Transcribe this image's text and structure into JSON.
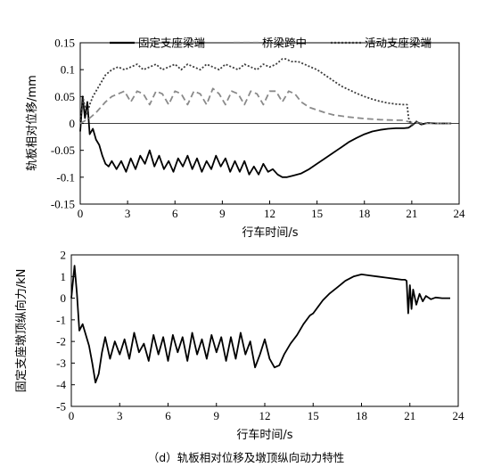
{
  "caption": "（d）轨板相对位移及墩顶纵向动力特性",
  "chart_data": [
    {
      "type": "line",
      "xlabel": "行车时间/s",
      "ylabel": "轨板相对位移/mm",
      "xlim": [
        0,
        24
      ],
      "ylim": [
        -0.15,
        0.15
      ],
      "xticks": [
        "0",
        "3",
        "6",
        "9",
        "12",
        "15",
        "18",
        "21",
        "24"
      ],
      "yticks": [
        "0.15",
        "0.1",
        "0.05",
        "0",
        "-0.05",
        "-0.1",
        "-0.15"
      ],
      "legend_position": "top",
      "series": [
        {
          "name": "固定支座梁端",
          "color": "#000000",
          "dash": "solid",
          "x": [
            0,
            0.15,
            0.3,
            0.45,
            0.6,
            0.8,
            1.0,
            1.2,
            1.4,
            1.6,
            1.8,
            2.0,
            2.3,
            2.6,
            2.9,
            3.2,
            3.5,
            3.8,
            4.1,
            4.4,
            4.7,
            5.0,
            5.3,
            5.6,
            5.9,
            6.2,
            6.5,
            6.8,
            7.1,
            7.4,
            7.7,
            8.0,
            8.3,
            8.6,
            8.9,
            9.2,
            9.5,
            9.8,
            10.1,
            10.4,
            10.7,
            11.0,
            11.3,
            11.6,
            11.9,
            12.2,
            12.5,
            12.8,
            13.1,
            13.5,
            14.0,
            14.5,
            15.0,
            15.5,
            16.0,
            16.5,
            17.0,
            17.5,
            18.0,
            18.5,
            19.0,
            19.5,
            20.0,
            20.5,
            20.8,
            21.0,
            21.3,
            21.6,
            22.0,
            22.5,
            23.0,
            23.5
          ],
          "y": [
            -0.015,
            0.05,
            0.01,
            0.04,
            -0.02,
            -0.01,
            -0.03,
            -0.04,
            -0.06,
            -0.075,
            -0.08,
            -0.07,
            -0.085,
            -0.07,
            -0.09,
            -0.065,
            -0.085,
            -0.06,
            -0.075,
            -0.05,
            -0.08,
            -0.06,
            -0.085,
            -0.07,
            -0.09,
            -0.065,
            -0.08,
            -0.06,
            -0.085,
            -0.065,
            -0.09,
            -0.07,
            -0.085,
            -0.06,
            -0.08,
            -0.065,
            -0.09,
            -0.07,
            -0.09,
            -0.07,
            -0.095,
            -0.08,
            -0.095,
            -0.075,
            -0.09,
            -0.085,
            -0.095,
            -0.1,
            -0.1,
            -0.097,
            -0.093,
            -0.085,
            -0.075,
            -0.065,
            -0.055,
            -0.045,
            -0.035,
            -0.027,
            -0.02,
            -0.015,
            -0.012,
            -0.01,
            -0.009,
            -0.009,
            -0.008,
            -0.004,
            0.003,
            -0.002,
            0.001,
            0,
            0,
            0
          ]
        },
        {
          "name": "桥梁跨中",
          "color": "#8a8a8a",
          "dash": "dashed",
          "x": [
            0,
            0.3,
            0.6,
            1.0,
            1.3,
            1.6,
            2.0,
            2.4,
            2.8,
            3.2,
            3.6,
            4.0,
            4.4,
            4.8,
            5.2,
            5.6,
            6.0,
            6.4,
            6.8,
            7.2,
            7.6,
            8.0,
            8.4,
            8.8,
            9.2,
            9.6,
            10.0,
            10.4,
            10.8,
            11.2,
            11.6,
            12.0,
            12.4,
            12.8,
            13.2,
            13.6,
            14.0,
            14.5,
            15.0,
            15.5,
            16.0,
            17.0,
            18.0,
            19.0,
            20.0,
            20.5,
            20.8,
            21.0,
            21.5,
            22.0,
            23.5
          ],
          "y": [
            0,
            0.005,
            0.01,
            0.02,
            0.03,
            0.04,
            0.05,
            0.055,
            0.06,
            0.04,
            0.06,
            0.055,
            0.035,
            0.06,
            0.055,
            0.035,
            0.06,
            0.055,
            0.035,
            0.06,
            0.055,
            0.035,
            0.065,
            0.055,
            0.035,
            0.06,
            0.055,
            0.035,
            0.06,
            0.055,
            0.035,
            0.06,
            0.06,
            0.04,
            0.06,
            0.055,
            0.04,
            0.03,
            0.025,
            0.02,
            0.016,
            0.012,
            0.009,
            0.007,
            0.006,
            0.006,
            0.003,
            0.002,
            0.001,
            0,
            0
          ]
        },
        {
          "name": "活动支座梁端",
          "color": "#3c3c3c",
          "dash": "dotted",
          "x": [
            0,
            0.2,
            0.4,
            0.6,
            0.8,
            1.0,
            1.3,
            1.6,
            2.0,
            2.4,
            2.8,
            3.2,
            3.6,
            4.0,
            4.4,
            4.8,
            5.2,
            5.6,
            6.0,
            6.4,
            6.8,
            7.2,
            7.6,
            8.0,
            8.4,
            8.8,
            9.2,
            9.6,
            10.0,
            10.4,
            10.8,
            11.2,
            11.6,
            12.0,
            12.4,
            12.8,
            13.0,
            13.4,
            13.8,
            14.2,
            14.6,
            15.0,
            15.5,
            16.0,
            16.5,
            17.0,
            17.5,
            18.0,
            18.5,
            19.0,
            19.5,
            20.0,
            20.5,
            20.7,
            20.8,
            21.0,
            21.3,
            21.6,
            22.0,
            22.5,
            23.0,
            23.5
          ],
          "y": [
            0.005,
            0.045,
            0.015,
            0.035,
            0.05,
            0.06,
            0.075,
            0.09,
            0.1,
            0.105,
            0.1,
            0.105,
            0.11,
            0.1,
            0.105,
            0.11,
            0.1,
            0.105,
            0.11,
            0.1,
            0.11,
            0.105,
            0.1,
            0.11,
            0.105,
            0.1,
            0.11,
            0.105,
            0.1,
            0.11,
            0.105,
            0.1,
            0.11,
            0.105,
            0.11,
            0.12,
            0.12,
            0.115,
            0.115,
            0.11,
            0.105,
            0.1,
            0.09,
            0.08,
            0.07,
            0.063,
            0.056,
            0.05,
            0.045,
            0.041,
            0.038,
            0.036,
            0.035,
            0.035,
            0.01,
            -0.005,
            0.004,
            -0.002,
            0.001,
            0,
            0,
            0
          ]
        }
      ]
    },
    {
      "type": "line",
      "xlabel": "行车时间/s",
      "ylabel": "固定支座墩顶纵向力/kN",
      "xlim": [
        0,
        24
      ],
      "ylim": [
        -5,
        2
      ],
      "xticks": [
        "0",
        "3",
        "6",
        "9",
        "12",
        "15",
        "18",
        "21",
        "24"
      ],
      "yticks": [
        "2",
        "1",
        "0",
        "-1",
        "-2",
        "-3",
        "-4",
        "-5"
      ],
      "series": [
        {
          "color": "#000000",
          "dash": "solid",
          "x": [
            0,
            0.2,
            0.35,
            0.5,
            0.7,
            0.9,
            1.1,
            1.3,
            1.5,
            1.7,
            1.9,
            2.1,
            2.4,
            2.7,
            3.0,
            3.3,
            3.6,
            3.9,
            4.2,
            4.5,
            4.8,
            5.1,
            5.4,
            5.7,
            6.0,
            6.3,
            6.6,
            6.9,
            7.2,
            7.5,
            7.8,
            8.1,
            8.4,
            8.7,
            9.0,
            9.3,
            9.6,
            9.9,
            10.2,
            10.5,
            10.8,
            11.1,
            11.4,
            11.7,
            12.0,
            12.3,
            12.6,
            12.9,
            13.2,
            13.6,
            14.0,
            14.4,
            14.8,
            15.0,
            15.3,
            15.6,
            16.0,
            16.5,
            17.0,
            17.5,
            18.0,
            18.5,
            19.0,
            19.5,
            20.0,
            20.5,
            20.7,
            20.8,
            20.9,
            21.0,
            21.1,
            21.2,
            21.4,
            21.6,
            21.8,
            22.0,
            22.3,
            22.6,
            23.0,
            23.5
          ],
          "y": [
            0,
            1.5,
            0.2,
            -1.5,
            -1.2,
            -1.7,
            -2.2,
            -3.0,
            -3.9,
            -3.5,
            -2.5,
            -1.8,
            -2.8,
            -2.0,
            -2.6,
            -1.9,
            -2.8,
            -1.6,
            -2.5,
            -2.1,
            -2.9,
            -1.7,
            -2.6,
            -1.8,
            -2.9,
            -1.7,
            -2.5,
            -1.8,
            -2.9,
            -1.6,
            -2.6,
            -1.9,
            -2.8,
            -1.7,
            -2.5,
            -1.8,
            -2.9,
            -1.8,
            -2.8,
            -1.6,
            -2.6,
            -2.0,
            -3.2,
            -2.6,
            -1.9,
            -2.8,
            -3.2,
            -3.1,
            -2.6,
            -2.1,
            -1.7,
            -1.2,
            -0.8,
            -0.7,
            -0.4,
            -0.1,
            0.2,
            0.5,
            0.8,
            1.0,
            1.1,
            1.05,
            1.0,
            0.95,
            0.9,
            0.85,
            0.85,
            0.8,
            -0.7,
            0.6,
            -0.5,
            0.4,
            -0.3,
            0.2,
            -0.15,
            0.1,
            -0.05,
            0.03,
            0,
            0
          ]
        }
      ]
    }
  ]
}
